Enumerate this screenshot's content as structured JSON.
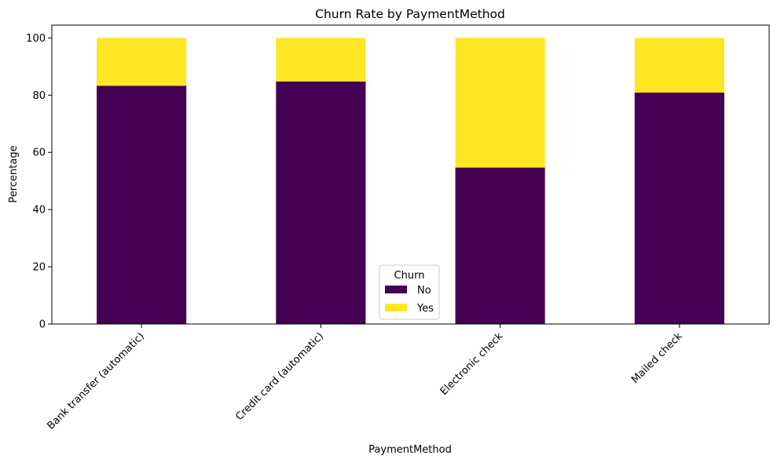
{
  "chart_data": {
    "type": "bar",
    "stacked": true,
    "title": "Churn Rate by PaymentMethod",
    "xlabel": "PaymentMethod",
    "ylabel": "Percentage",
    "categories": [
      "Bank transfer (automatic)",
      "Credit card (automatic)",
      "Electronic check",
      "Mailed check"
    ],
    "series": [
      {
        "name": "No",
        "color": "#440154",
        "values": [
          83.3,
          84.8,
          54.7,
          80.9
        ]
      },
      {
        "name": "Yes",
        "color": "#fde725",
        "values": [
          16.7,
          15.2,
          45.3,
          19.1
        ]
      }
    ],
    "ylim": [
      0,
      104.5
    ],
    "yticks": [
      0,
      20,
      40,
      60,
      80,
      100
    ],
    "grid": false,
    "legend": {
      "title": "Churn",
      "placement": "bottom-center"
    }
  }
}
